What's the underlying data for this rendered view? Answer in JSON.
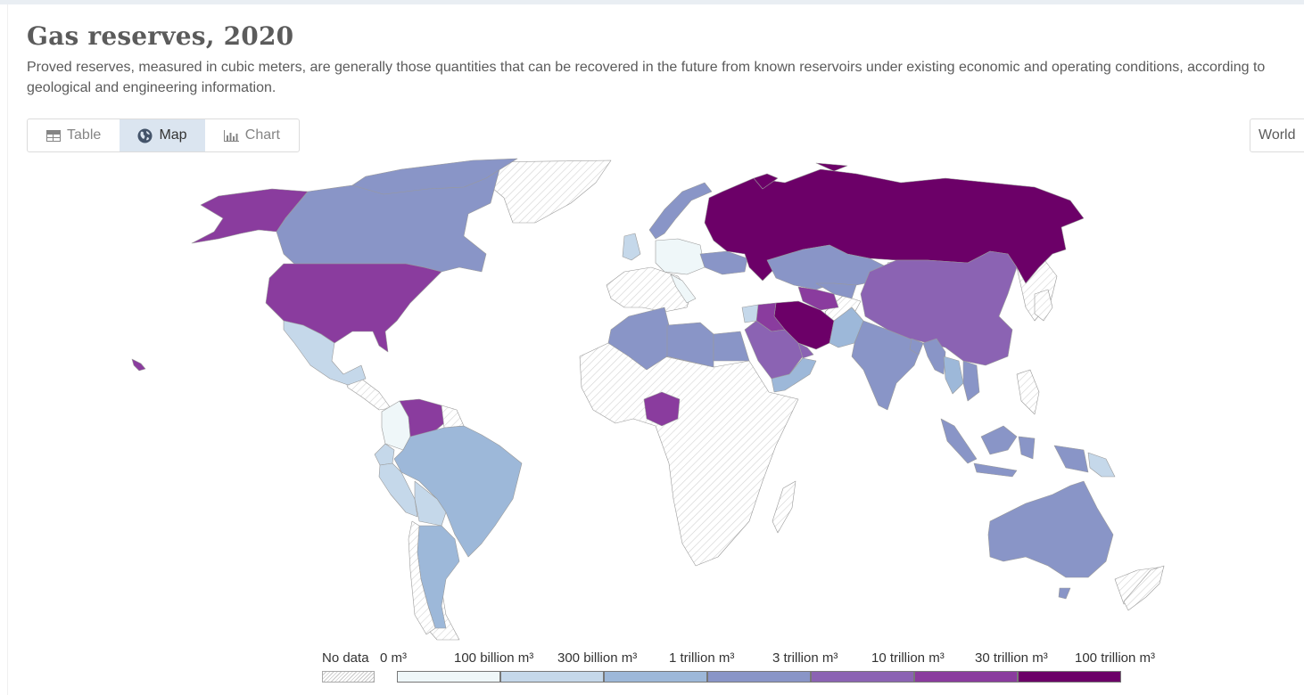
{
  "header": {
    "title": "Gas reserves, 2020",
    "subtitle": "Proved reserves, measured in cubic meters, are generally those quantities that can be recovered in the future from known reservoirs under existing economic and operating conditions, according to geological and engineering information."
  },
  "tabs": [
    {
      "label": "Table",
      "icon": "table-icon",
      "active": false
    },
    {
      "label": "Map",
      "icon": "globe-icon",
      "active": true
    },
    {
      "label": "Chart",
      "icon": "chart-icon",
      "active": false
    }
  ],
  "region_selector": {
    "label": "World"
  },
  "legend": {
    "no_data_label": "No data",
    "bins": [
      {
        "label": "0 m³",
        "color": "#eff7f9"
      },
      {
        "label": "100 billion m³",
        "color": "#c5d8ea"
      },
      {
        "label": "300 billion m³",
        "color": "#9db8d9"
      },
      {
        "label": "1 trillion m³",
        "color": "#8995c7"
      },
      {
        "label": "3 trillion m³",
        "color": "#8b63b3"
      },
      {
        "label": "10 trillion m³",
        "color": "#8a3c9e"
      },
      {
        "label": "30 trillion m³",
        "color": "#6c0068"
      },
      {
        "label": "100 trillion m³",
        "color": null
      }
    ]
  },
  "map_colors": {
    "no_data_hatch": "#d4d4d4",
    "border": "#9a9a9a"
  }
}
